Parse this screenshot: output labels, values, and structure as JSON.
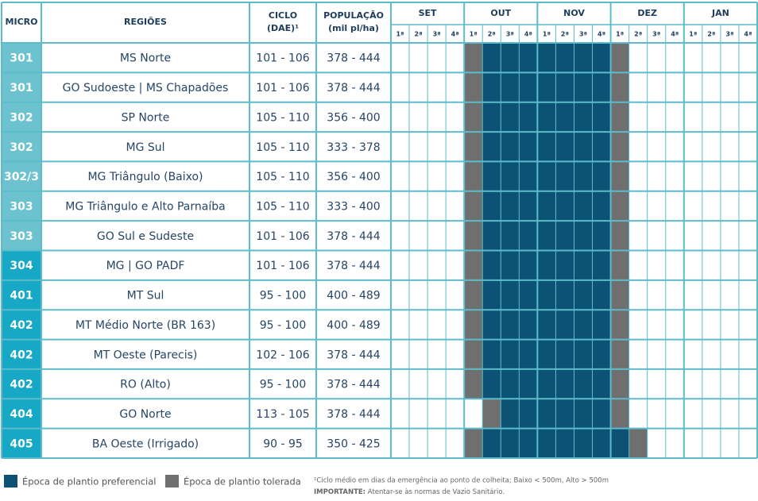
{
  "header": {
    "micro": "MICRO",
    "regioes": "REGIÕES",
    "ciclo": [
      "CICLO",
      "(DAE)¹"
    ],
    "populacao": [
      "POPULAÇÃO",
      "(mil pl/ha)"
    ],
    "months": [
      "SET",
      "OUT",
      "NOV",
      "DEZ",
      "JAN"
    ],
    "weeks": [
      "1ª",
      "2ª",
      "3ª",
      "4ª"
    ]
  },
  "table": {
    "rows": [
      [
        "301",
        "MS Norte",
        "101 - 106",
        "378 - 444"
      ],
      [
        "301",
        "GO Sudoeste | MS Chapadões",
        "101 - 106",
        "378 - 444"
      ],
      [
        "302",
        "SP Norte",
        "105 - 110",
        "356 - 400"
      ],
      [
        "302",
        "MG Sul",
        "105 - 110",
        "333 - 378"
      ],
      [
        "302/3",
        "MG Triângulo (Baixo)",
        "105 - 110",
        "356 - 400"
      ],
      [
        "303",
        "MG Triângulo e Alto Parnaíba",
        "105 - 110",
        "333 - 400"
      ],
      [
        "303",
        "GO Sul e Sudeste",
        "101 - 106",
        "378 - 444"
      ],
      [
        "304",
        "MG | GO PADF",
        "101 - 106",
        "378 - 444"
      ],
      [
        "401",
        "MT Sul",
        "95 - 100",
        "400 - 489"
      ],
      [
        "402",
        "MT Médio Norte (BR 163)",
        "95 - 100",
        "400 - 489"
      ],
      [
        "402",
        "MT Oeste (Parecis)",
        "102 - 106",
        "378 - 444"
      ],
      [
        "402",
        "RO (Alto)",
        "95 - 100",
        "378 - 444"
      ],
      [
        "404",
        "GO Norte",
        "113 - 105",
        "378 - 444"
      ],
      [
        "405",
        "BA Oeste (Irrigado)",
        "90 - 95",
        "350 - 425"
      ]
    ]
  },
  "legend": {
    "preferred": "Época de plantio preferencial",
    "tolerated": "Época de plantio tolerada"
  },
  "footnote": {
    "note": "¹Ciclo médio em dias da emergência ao ponto de colheita; Baixo < 500m, Alto > 500m",
    "important_label": "IMPORTANTE:",
    "important_text": "Atentar-se às normas de Vazio Sanitário."
  }
}
